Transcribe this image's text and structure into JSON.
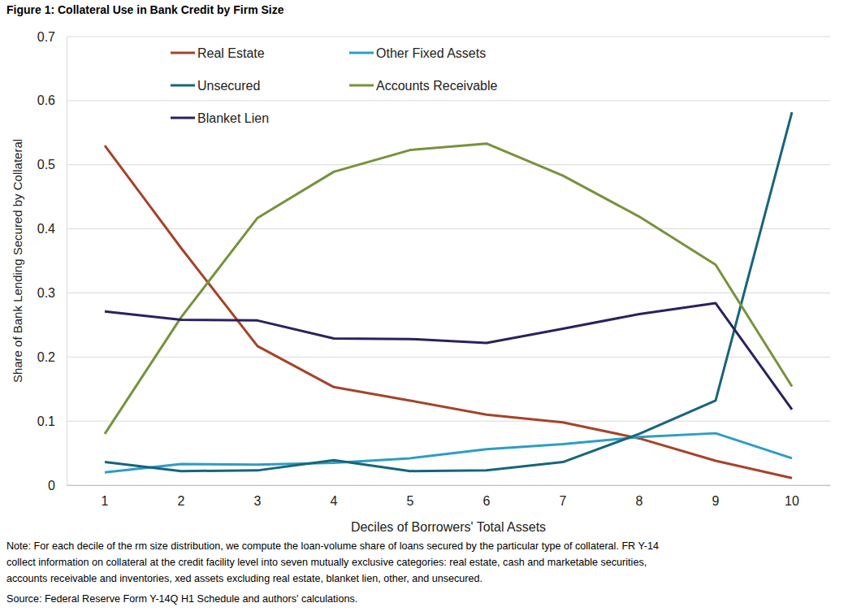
{
  "chart_data": {
    "type": "line",
    "title": "Figure 1: Collateral Use in Bank Credit by Firm Size",
    "x_label": "Deciles of Borrowers' Total Assets",
    "y_label": "Share of Bank Lending Secured by Collateral",
    "categories": [
      "1",
      "2",
      "3",
      "4",
      "5",
      "6",
      "7",
      "8",
      "9",
      "10"
    ],
    "series": [
      {
        "name": "Real Estate",
        "color": "#a5432a",
        "values": [
          0.53,
          0.37,
          0.217,
          0.153,
          0.132,
          0.11,
          0.098,
          0.073,
          0.038,
          0.011
        ]
      },
      {
        "name": "Other Fixed Assets",
        "color": "#2e9dc4",
        "values": [
          0.02,
          0.033,
          0.032,
          0.035,
          0.042,
          0.056,
          0.064,
          0.075,
          0.081,
          0.042
        ]
      },
      {
        "name": "Unsecured",
        "color": "#17657a",
        "values": [
          0.036,
          0.022,
          0.023,
          0.039,
          0.022,
          0.023,
          0.036,
          0.08,
          0.132,
          0.582
        ]
      },
      {
        "name": "Accounts Receivable",
        "color": "#77923c",
        "values": [
          0.08,
          0.262,
          0.417,
          0.489,
          0.523,
          0.533,
          0.483,
          0.419,
          0.344,
          0.154
        ]
      },
      {
        "name": "Blanket Lien",
        "color": "#28235d",
        "values": [
          0.271,
          0.258,
          0.257,
          0.229,
          0.228,
          0.222,
          0.244,
          0.267,
          0.284,
          0.118
        ]
      }
    ],
    "ylim": [
      0,
      0.7
    ],
    "yticks": [
      0,
      0.1,
      0.2,
      0.3,
      0.4,
      0.5,
      0.6,
      0.7
    ],
    "grid": true,
    "legend": "top-left",
    "notes": [
      "Note: For each decile of the rm size distribution, we compute the loan-volume share of loans secured by the particular type of collateral. FR Y-14",
      "collect information on collateral at the credit facility level into seven mutually exclusive categories: real estate, cash and marketable securities,",
      "accounts receivable and inventories, xed assets excluding real estate, blanket lien, other, and unsecured."
    ],
    "source": "Source: Federal Reserve Form Y-14Q H1 Schedule and authors' calculations."
  }
}
